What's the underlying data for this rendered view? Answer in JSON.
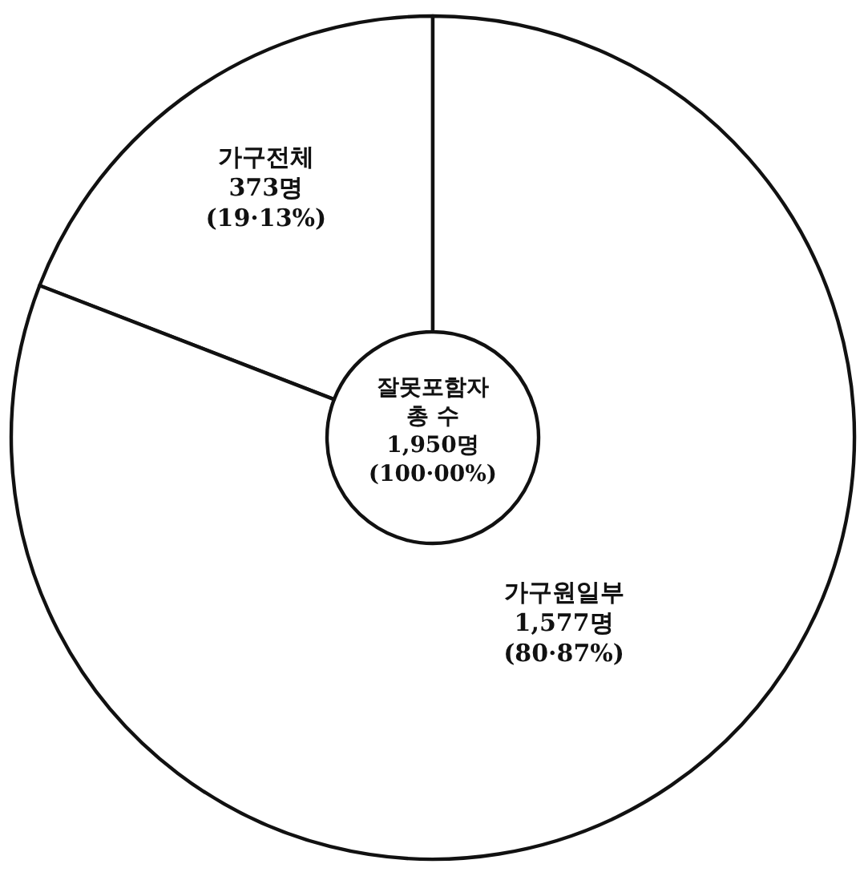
{
  "chart_data": {
    "type": "donut",
    "title": "잘못포함자 총 수",
    "annotations": [
      "1,950명",
      "(100·00%)"
    ],
    "categories": [
      "가구전체",
      "가구원일부"
    ],
    "values": [
      373,
      1577
    ],
    "value_labels": [
      "373명 (19·13%)",
      "1,577명 (80·87%)"
    ],
    "colors": [
      "#ffffff",
      "#ffffff"
    ]
  }
}
